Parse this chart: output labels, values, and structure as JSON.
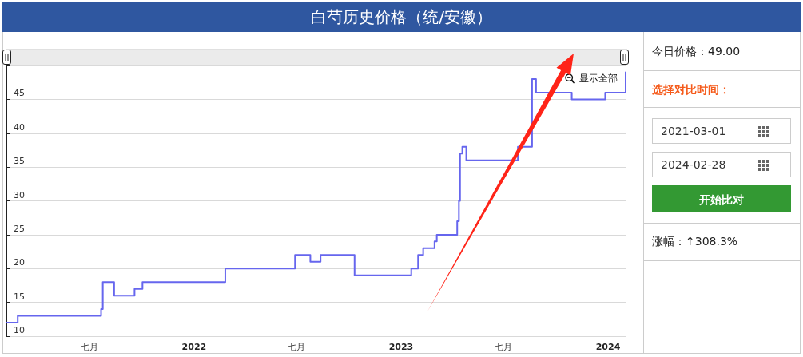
{
  "chart_data": [
    {
      "type": "step",
      "title": "白芍历史价格（统/安徽）",
      "x": [
        "2021-02-04",
        "2021-02-24",
        "2021-07-21",
        "2021-07-24",
        "2021-08-13",
        "2021-09-18",
        "2021-10-02",
        "2022-02-25",
        "2022-06-28",
        "2022-07-25",
        "2022-08-12",
        "2022-10-11",
        "2023-01-19",
        "2023-01-31",
        "2023-02-09",
        "2023-03-01",
        "2023-03-05",
        "2023-04-10",
        "2023-04-13",
        "2023-04-15",
        "2023-04-19",
        "2023-04-26",
        "2023-07-26",
        "2023-08-20",
        "2023-08-27",
        "2023-10-29",
        "2023-12-27",
        "2024-02-01"
      ],
      "values": [
        12,
        13,
        14,
        18,
        16,
        17,
        18,
        20,
        22,
        21,
        22,
        19,
        20,
        22,
        23,
        24,
        25,
        27,
        30,
        37,
        38,
        36,
        38,
        48,
        46,
        45,
        46,
        49
      ],
      "color": "#6666ee",
      "xlim": [
        "2021-02-04",
        "2024-02-01"
      ],
      "xticks": [
        {
          "value": "2021-07-01",
          "label": "七月"
        },
        {
          "value": "2022-01-01",
          "label": "2022"
        },
        {
          "value": "2022-07-01",
          "label": "七月"
        },
        {
          "value": "2023-01-01",
          "label": "2023"
        },
        {
          "value": "2023-07-01",
          "label": "七月"
        },
        {
          "value": "2024-01-01",
          "label": "2024"
        }
      ],
      "ylim": [
        10,
        50
      ],
      "yticks": [
        10,
        15,
        20,
        25,
        30,
        35,
        40,
        45,
        {
          "value": 50,
          "label": null
        }
      ],
      "grid": "y",
      "annotations": [
        "显示全部"
      ]
    },
    {
      "type": "other",
      "annotations": [
        "今日价格：49.00",
        "选择对比时间：",
        "2021-03-01",
        "2024-02-28",
        "开始比对",
        "涨幅：↑308.3%"
      ]
    }
  ]
}
